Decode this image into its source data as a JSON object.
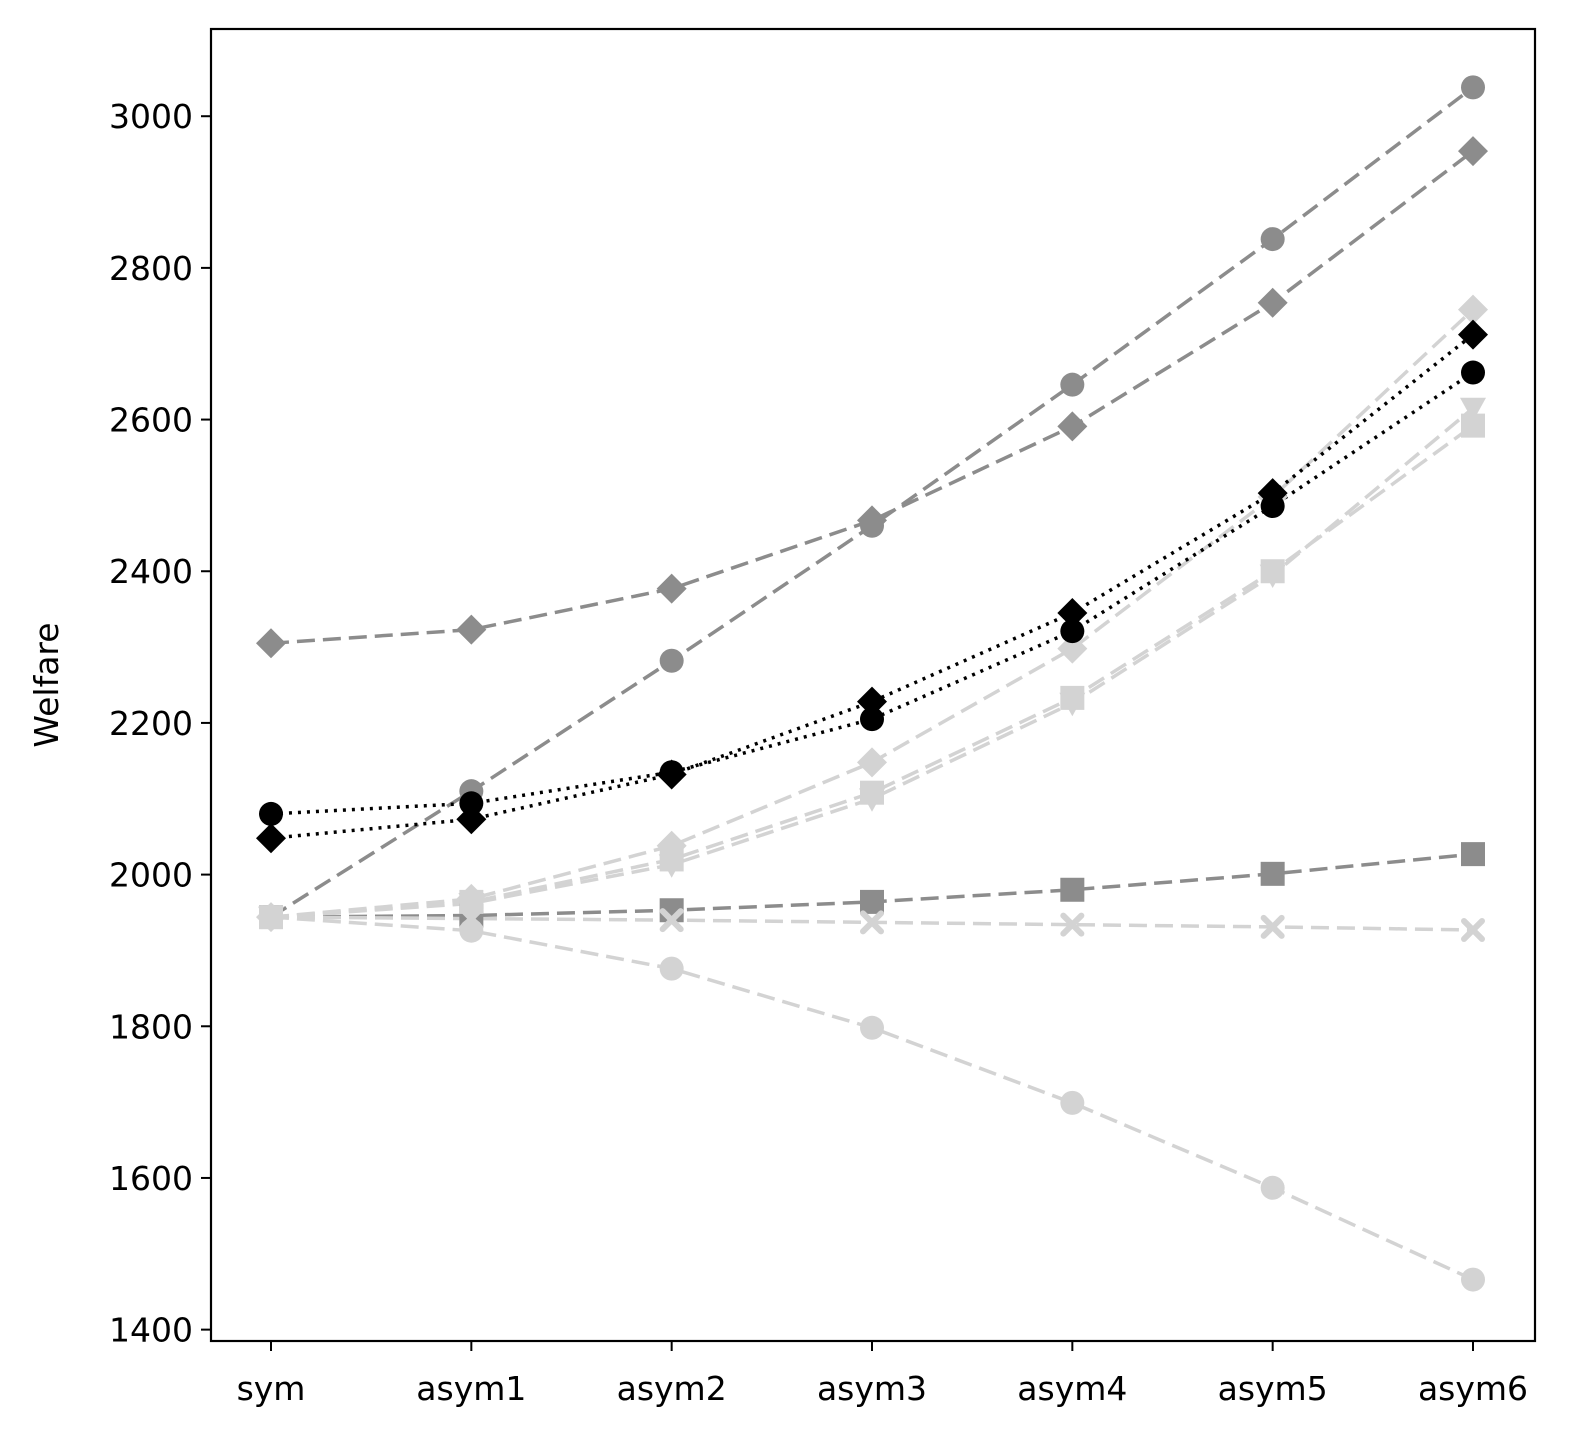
{
  "chart_data": {
    "type": "line",
    "title": "",
    "xlabel": "",
    "ylabel": "Welfare",
    "categories": [
      "sym",
      "asym1",
      "asym2",
      "asym3",
      "asym4",
      "asym5",
      "asym6"
    ],
    "ylim": [
      1385,
      3115
    ],
    "yticks": [
      1400,
      1600,
      1800,
      2000,
      2200,
      2400,
      2600,
      2800,
      3000
    ],
    "grid": false,
    "legend": "none",
    "series": [
      {
        "color": "#8c8c8c",
        "marker": "circle",
        "linestyle": "dashed",
        "values": [
          1944,
          2110,
          2282,
          2460,
          2646,
          2838,
          3038
        ]
      },
      {
        "color": "#8c8c8c",
        "marker": "diamond",
        "linestyle": "dashed",
        "values": [
          2305,
          2323,
          2377,
          2467,
          2591,
          2754,
          2954
        ]
      },
      {
        "color": "#8c8c8c",
        "marker": "square",
        "linestyle": "dashed",
        "values": [
          1944,
          1946,
          1953,
          1964,
          1980,
          2001,
          2027
        ]
      },
      {
        "color": "#d3d3d3",
        "marker": "circle",
        "linestyle": "dashed",
        "values": [
          1944,
          1926,
          1876,
          1798,
          1699,
          1587,
          1466
        ]
      },
      {
        "color": "#d3d3d3",
        "marker": "x",
        "linestyle": "dashed",
        "values": [
          1944,
          1942,
          1940,
          1937,
          1934,
          1931,
          1927
        ]
      },
      {
        "color": "#d3d3d3",
        "marker": "diamond",
        "linestyle": "dashed",
        "values": [
          1944,
          1968,
          2038,
          2148,
          2298,
          2498,
          2745
        ]
      },
      {
        "color": "#d3d3d3",
        "marker": "triangle-down",
        "linestyle": "dashed",
        "values": [
          1944,
          1962,
          2013,
          2100,
          2226,
          2395,
          2615
        ]
      },
      {
        "color": "#d3d3d3",
        "marker": "square",
        "linestyle": "dashed",
        "values": [
          1944,
          1964,
          2020,
          2108,
          2233,
          2400,
          2592
        ]
      },
      {
        "color": "#000000",
        "marker": "circle",
        "linestyle": "dotted",
        "values": [
          2080,
          2094,
          2135,
          2205,
          2321,
          2486,
          2662
        ]
      },
      {
        "color": "#000000",
        "marker": "diamond",
        "linestyle": "dotted",
        "values": [
          2048,
          2073,
          2132,
          2228,
          2345,
          2503,
          2712
        ]
      }
    ]
  }
}
